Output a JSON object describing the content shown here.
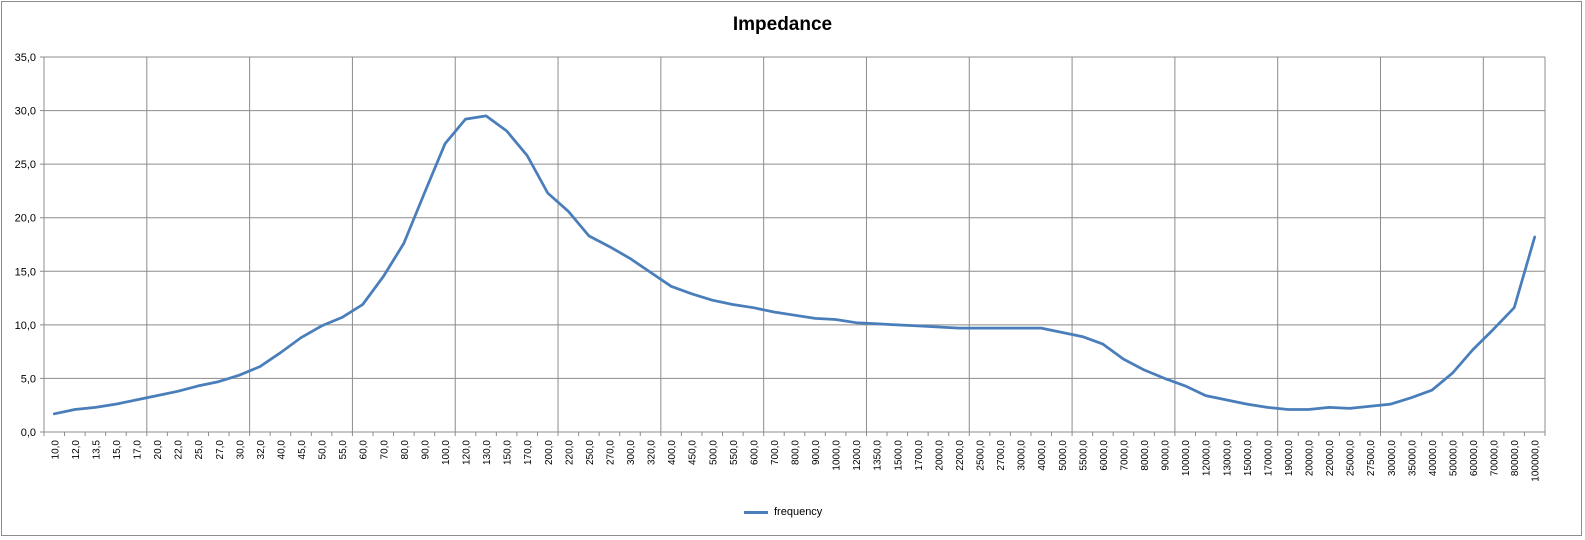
{
  "chart_data": {
    "type": "line",
    "title": "Impedance",
    "xlabel": "",
    "ylabel": "",
    "ylim": [
      0,
      35
    ],
    "y_ticks": [
      "0,0",
      "5,0",
      "10,0",
      "15,0",
      "20,0",
      "25,0",
      "30,0",
      "35,0"
    ],
    "grid": true,
    "legend_position": "bottom",
    "categories": [
      "10,0",
      "12,0",
      "13,5",
      "15,0",
      "17,0",
      "20,0",
      "22,0",
      "25,0",
      "27,0",
      "30,0",
      "32,0",
      "40,0",
      "45,0",
      "50,0",
      "55,0",
      "60,0",
      "70,0",
      "80,0",
      "90,0",
      "100,0",
      "120,0",
      "130,0",
      "150,0",
      "170,0",
      "200,0",
      "220,0",
      "250,0",
      "270,0",
      "300,0",
      "320,0",
      "400,0",
      "450,0",
      "500,0",
      "550,0",
      "600,0",
      "700,0",
      "800,0",
      "900,0",
      "1000,0",
      "1200,0",
      "1350,0",
      "1500,0",
      "1700,0",
      "2000,0",
      "2200,0",
      "2500,0",
      "2700,0",
      "3000,0",
      "4000,0",
      "5000,0",
      "5500,0",
      "6000,0",
      "7000,0",
      "8000,0",
      "9000,0",
      "10000,0",
      "12000,0",
      "13000,0",
      "15000,0",
      "17000,0",
      "19000,0",
      "20000,0",
      "22000,0",
      "25000,0",
      "27500,0",
      "30000,0",
      "35000,0",
      "40000,0",
      "50000,0",
      "60000,0",
      "70000,0",
      "80000,0",
      "100000,0"
    ],
    "series": [
      {
        "name": "frequency",
        "color": "#4a7ebb",
        "values": [
          1.7,
          2.1,
          2.3,
          2.6,
          3.0,
          3.4,
          3.8,
          4.3,
          4.7,
          5.3,
          6.1,
          7.4,
          8.8,
          9.9,
          10.7,
          11.9,
          14.5,
          17.6,
          22.3,
          26.9,
          29.2,
          29.5,
          28.1,
          25.8,
          22.3,
          20.6,
          18.3,
          17.3,
          16.2,
          14.9,
          13.6,
          12.9,
          12.3,
          11.9,
          11.6,
          11.2,
          10.9,
          10.6,
          10.5,
          10.2,
          10.1,
          10.0,
          9.9,
          9.8,
          9.7,
          9.7,
          9.7,
          9.7,
          9.7,
          9.3,
          8.9,
          8.2,
          6.8,
          5.8,
          5.0,
          4.3,
          3.4,
          3.0,
          2.6,
          2.3,
          2.1,
          2.1,
          2.3,
          2.2,
          2.4,
          2.6,
          3.2,
          3.9,
          5.5,
          7.7,
          9.6,
          11.6,
          18.2
        ]
      }
    ]
  }
}
